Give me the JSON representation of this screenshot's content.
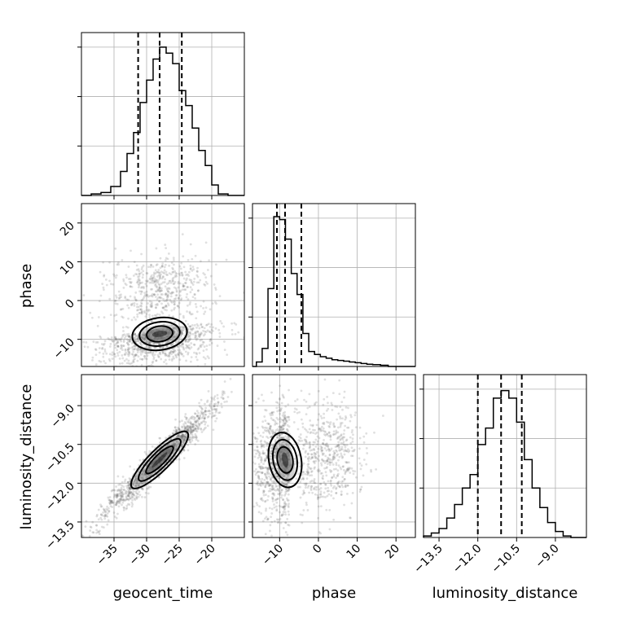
{
  "chart_data": {
    "type": "corner",
    "parameters": [
      "geocent_time",
      "phase",
      "luminosity_distance"
    ],
    "axis_labels": {
      "geocent_time": "geocent_time",
      "phase": "phase",
      "luminosity_distance": "luminosity_distance"
    },
    "ranges": {
      "geocent_time": [
        -40,
        -15
      ],
      "phase": [
        -17,
        25
      ],
      "luminosity_distance": [
        -14.1,
        -7.8
      ]
    },
    "ticks": {
      "geocent_time": [
        -35,
        -30,
        -25,
        -20
      ],
      "phase": [
        -10,
        0,
        10,
        20
      ],
      "luminosity_distance": [
        -13.5,
        -12.0,
        -10.5,
        -9.0
      ]
    },
    "tick_labels": {
      "geocent_time": [
        "−35",
        "−30",
        "−25",
        "−20"
      ],
      "phase": [
        "−10",
        "0",
        "10",
        "20"
      ],
      "luminosity_distance": [
        "−13.5",
        "−12.0",
        "−10.5",
        "−9.0"
      ]
    },
    "quantiles": {
      "geocent_time": [
        -31.3,
        -28.0,
        -24.6
      ],
      "phase": [
        -10.7,
        -8.6,
        -4.4
      ],
      "luminosity_distance": [
        -12.0,
        -11.1,
        -10.3
      ]
    },
    "histograms": {
      "geocent_time": {
        "edges": [
          -38.5,
          -37.0,
          -35.5,
          -34.0,
          -33.0,
          -32.0,
          -31.0,
          -30.0,
          -29.0,
          -28.0,
          -27.0,
          -26.0,
          -25.0,
          -24.0,
          -23.0,
          -22.0,
          -21.0,
          -20.0,
          -19.0,
          -17.5
        ],
        "counts": [
          0.01,
          0.02,
          0.06,
          0.16,
          0.28,
          0.42,
          0.62,
          0.77,
          0.91,
          0.99,
          0.95,
          0.88,
          0.7,
          0.6,
          0.45,
          0.3,
          0.2,
          0.07,
          0.01
        ]
      },
      "phase": {
        "edges": [
          -16.0,
          -14.5,
          -13.0,
          -11.5,
          -10.0,
          -8.5,
          -7.0,
          -5.5,
          -4.0,
          -2.5,
          -1.0,
          0.5,
          2.0,
          3.5,
          5.0,
          6.5,
          8.0,
          9.5,
          11.0,
          12.5,
          14.0,
          16.0,
          18.0
        ],
        "counts": [
          0.03,
          0.12,
          0.52,
          1.0,
          0.98,
          0.85,
          0.62,
          0.48,
          0.22,
          0.1,
          0.08,
          0.065,
          0.055,
          0.045,
          0.04,
          0.035,
          0.03,
          0.025,
          0.02,
          0.015,
          0.012,
          0.008
        ]
      },
      "luminosity_distance": {
        "edges": [
          -14.1,
          -13.8,
          -13.5,
          -13.2,
          -12.9,
          -12.6,
          -12.3,
          -12.0,
          -11.7,
          -11.4,
          -11.1,
          -10.8,
          -10.5,
          -10.2,
          -9.9,
          -9.6,
          -9.3,
          -9.0,
          -8.7,
          -8.4
        ],
        "counts": [
          0.01,
          0.03,
          0.06,
          0.13,
          0.22,
          0.33,
          0.42,
          0.62,
          0.73,
          0.93,
          0.98,
          0.93,
          0.77,
          0.52,
          0.33,
          0.2,
          0.1,
          0.04,
          0.01
        ]
      }
    },
    "correlations": {
      "phase_vs_geocent_time": 0.25,
      "luminosity_distance_vs_geocent_time": 0.96,
      "luminosity_distance_vs_phase": 0.15
    },
    "grid": true
  }
}
